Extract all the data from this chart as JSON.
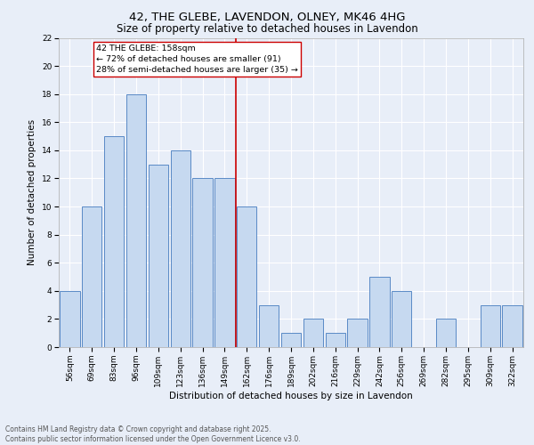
{
  "title": "42, THE GLEBE, LAVENDON, OLNEY, MK46 4HG",
  "subtitle": "Size of property relative to detached houses in Lavendon",
  "xlabel": "Distribution of detached houses by size in Lavendon",
  "ylabel": "Number of detached properties",
  "categories": [
    "56sqm",
    "69sqm",
    "83sqm",
    "96sqm",
    "109sqm",
    "123sqm",
    "136sqm",
    "149sqm",
    "162sqm",
    "176sqm",
    "189sqm",
    "202sqm",
    "216sqm",
    "229sqm",
    "242sqm",
    "256sqm",
    "269sqm",
    "282sqm",
    "295sqm",
    "309sqm",
    "322sqm"
  ],
  "values": [
    4,
    10,
    15,
    18,
    13,
    14,
    12,
    12,
    10,
    3,
    1,
    2,
    1,
    2,
    5,
    4,
    0,
    2,
    0,
    3,
    3
  ],
  "bar_color": "#c6d9f0",
  "bar_edge_color": "#5a8ac6",
  "vline_color": "#cc0000",
  "annotation_text": "42 THE GLEBE: 158sqm\n← 72% of detached houses are smaller (91)\n28% of semi-detached houses are larger (35) →",
  "annotation_box_color": "#ffffff",
  "annotation_box_edge": "#cc0000",
  "ylim": [
    0,
    22
  ],
  "yticks": [
    0,
    2,
    4,
    6,
    8,
    10,
    12,
    14,
    16,
    18,
    20,
    22
  ],
  "background_color": "#e8eef8",
  "grid_color": "#ffffff",
  "footer": "Contains HM Land Registry data © Crown copyright and database right 2025.\nContains public sector information licensed under the Open Government Licence v3.0.",
  "title_fontsize": 9.5,
  "subtitle_fontsize": 8.5,
  "axis_label_fontsize": 7.5,
  "tick_fontsize": 6.5,
  "annotation_fontsize": 6.8,
  "footer_fontsize": 5.5
}
